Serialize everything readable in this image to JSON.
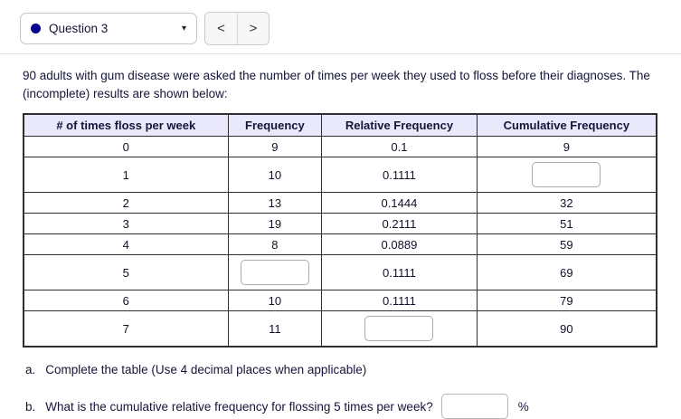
{
  "header": {
    "question_label": "Question 3",
    "caret": "▾",
    "prev": "<",
    "next": ">"
  },
  "intro": "90 adults with gum disease were asked the number of times per week they used to floss before their diagnoses. The (incomplete) results are shown below:",
  "table": {
    "columns": [
      "# of times floss per week",
      "Frequency",
      "Relative Frequency",
      "Cumulative Frequency"
    ],
    "rows": [
      {
        "cells": [
          "0",
          "9",
          "0.1",
          "9"
        ],
        "input_cols": []
      },
      {
        "cells": [
          "1",
          "10",
          "0.1111",
          ""
        ],
        "input_cols": [
          3
        ]
      },
      {
        "cells": [
          "2",
          "13",
          "0.1444",
          "32"
        ],
        "input_cols": []
      },
      {
        "cells": [
          "3",
          "19",
          "0.2111",
          "51"
        ],
        "input_cols": []
      },
      {
        "cells": [
          "4",
          "8",
          "0.0889",
          "59"
        ],
        "input_cols": []
      },
      {
        "cells": [
          "5",
          "",
          "0.1111",
          "69"
        ],
        "input_cols": [
          1
        ]
      },
      {
        "cells": [
          "6",
          "10",
          "0.1111",
          "79"
        ],
        "input_cols": []
      },
      {
        "cells": [
          "7",
          "11",
          "",
          "90"
        ],
        "input_cols": [
          2
        ]
      }
    ]
  },
  "questions": {
    "a_label": "a.",
    "a_text": "Complete the table (Use 4 decimal places when applicable)",
    "b_label": "b.",
    "b_text": "What is the cumulative relative frequency for flossing 5 times per week?",
    "b_value": "",
    "b_unit": "%"
  },
  "colors": {
    "table_header_bg": "#e9e9fb",
    "table_border": "#2e2e2e",
    "text": "#15153a",
    "question_dot": "#00008b"
  }
}
